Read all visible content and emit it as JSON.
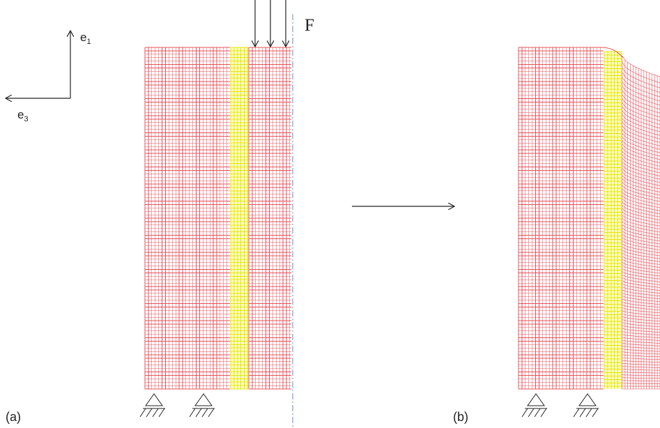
{
  "axes": {
    "e1_base": "e",
    "e1_sub": "1",
    "e3_base": "e",
    "e3_sub": "3"
  },
  "force_label": "F",
  "panel_a_label": "(a)",
  "panel_b_label": "(b)",
  "colors": {
    "mesh": "#e8505a",
    "layer": "#e4e40a",
    "layer_fill": "#ffffc8",
    "symmetry_line": "#6a88c8",
    "ink": "#222222"
  },
  "icons": {
    "support": "pinned-support-icon",
    "process": "arrow-right-icon",
    "load": "downward-force-arrow-icon"
  }
}
